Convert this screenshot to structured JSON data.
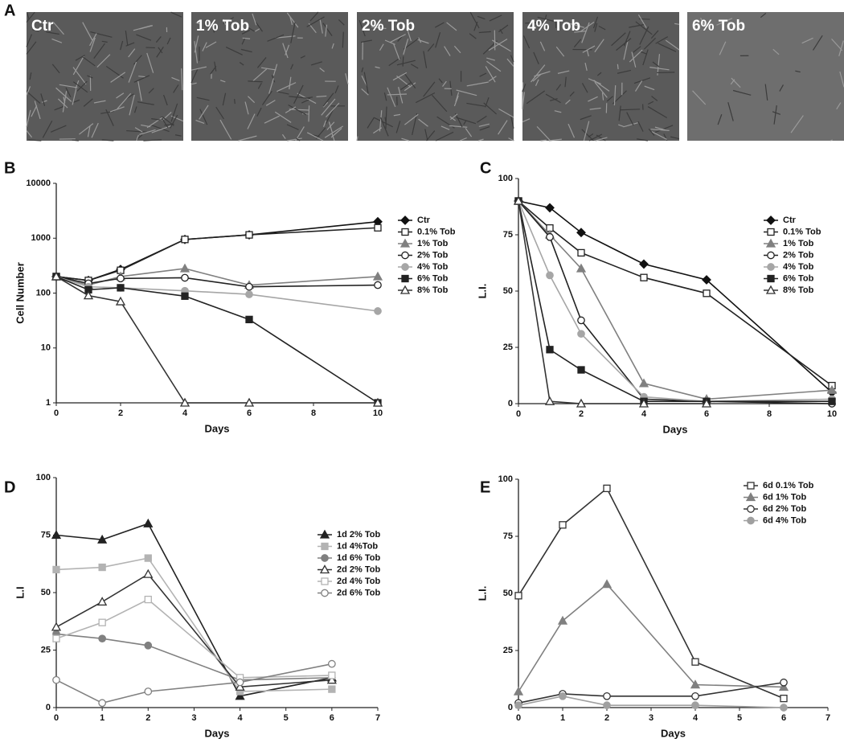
{
  "panel_a": {
    "label": "A",
    "images": [
      "Ctr",
      "1% Tob",
      "2% Tob",
      "4% Tob",
      "6% Tob"
    ]
  },
  "chart_data": [
    {
      "type": "line",
      "panel": "B",
      "y_label": "Cell Number",
      "x_label": "Days",
      "yscale": "log",
      "x": [
        0,
        1,
        2,
        4,
        6,
        10
      ],
      "xlim": [
        0,
        10
      ],
      "xticks": [
        0,
        2,
        4,
        6,
        8,
        10
      ],
      "ylim": [
        1,
        10000
      ],
      "yticks": [
        1,
        10,
        100,
        1000,
        10000
      ],
      "series": [
        {
          "name": "Ctr",
          "color": "#111111",
          "marker": "diamond",
          "filled": true,
          "values": [
            200,
            170,
            270,
            950,
            1150,
            2000
          ]
        },
        {
          "name": "0.1% Tob",
          "color": "#222222",
          "marker": "square",
          "filled": false,
          "values": [
            200,
            170,
            260,
            950,
            1150,
            1550
          ]
        },
        {
          "name": "1% Tob",
          "color": "#808080",
          "marker": "triangle",
          "filled": true,
          "values": [
            200,
            140,
            200,
            280,
            140,
            200
          ]
        },
        {
          "name": "2% Tob",
          "color": "#222222",
          "marker": "circle",
          "filled": false,
          "values": [
            200,
            150,
            185,
            190,
            130,
            140
          ]
        },
        {
          "name": "4% Tob",
          "color": "#a6a6a6",
          "marker": "circle",
          "filled": true,
          "values": [
            200,
            130,
            125,
            110,
            95,
            47
          ]
        },
        {
          "name": "6% Tob",
          "color": "#222222",
          "marker": "square",
          "filled": true,
          "values": [
            200,
            115,
            125,
            88,
            33,
            1
          ]
        },
        {
          "name": "8% Tob",
          "color": "#333333",
          "marker": "triangle",
          "filled": false,
          "values": [
            200,
            90,
            70,
            1,
            1,
            1
          ]
        }
      ]
    },
    {
      "type": "line",
      "panel": "C",
      "y_label": "L.I.",
      "x_label": "Days",
      "x": [
        0,
        1,
        2,
        4,
        6,
        10
      ],
      "xlim": [
        0,
        10
      ],
      "xticks": [
        0,
        2,
        4,
        6,
        8,
        10
      ],
      "ylim": [
        0,
        100
      ],
      "yticks": [
        0,
        25,
        50,
        75,
        100
      ],
      "series": [
        {
          "name": "Ctr",
          "color": "#111111",
          "marker": "diamond",
          "filled": true,
          "values": [
            90,
            87,
            76,
            62,
            55,
            5
          ]
        },
        {
          "name": "0.1% Tob",
          "color": "#222222",
          "marker": "square",
          "filled": false,
          "values": [
            90,
            78,
            67,
            56,
            49,
            8
          ]
        },
        {
          "name": "1% Tob",
          "color": "#808080",
          "marker": "triangle",
          "filled": true,
          "values": [
            90,
            75,
            60,
            9,
            2,
            6
          ]
        },
        {
          "name": "2% Tob",
          "color": "#222222",
          "marker": "circle",
          "filled": false,
          "values": [
            90,
            74,
            37,
            2,
            1,
            0
          ]
        },
        {
          "name": "4% Tob",
          "color": "#a6a6a6",
          "marker": "circle",
          "filled": true,
          "values": [
            90,
            57,
            31,
            3,
            1,
            2
          ]
        },
        {
          "name": "6% Tob",
          "color": "#222222",
          "marker": "square",
          "filled": true,
          "values": [
            90,
            24,
            15,
            1,
            1,
            1
          ]
        },
        {
          "name": "8% Tob",
          "color": "#333333",
          "marker": "triangle",
          "filled": false,
          "values": [
            90,
            1,
            0,
            0,
            0,
            null
          ]
        }
      ]
    },
    {
      "type": "line",
      "panel": "D",
      "y_label": "L.I",
      "x_label": "Days",
      "x": [
        0,
        1,
        2,
        4,
        6
      ],
      "xlim": [
        0,
        7
      ],
      "xticks": [
        0,
        1,
        2,
        3,
        4,
        5,
        6,
        7
      ],
      "ylim": [
        0,
        100
      ],
      "yticks": [
        0,
        25,
        50,
        75,
        100
      ],
      "series": [
        {
          "name": "1d 2% Tob",
          "color": "#222222",
          "marker": "triangle",
          "filled": true,
          "values": [
            75,
            73,
            80,
            5,
            13
          ]
        },
        {
          "name": "1d 4%Tob",
          "color": "#b3b3b3",
          "marker": "square",
          "filled": true,
          "values": [
            60,
            61,
            65,
            7,
            8
          ]
        },
        {
          "name": "1d 6% Tob",
          "color": "#808080",
          "marker": "circle",
          "filled": true,
          "values": [
            32,
            30,
            27,
            12,
            13
          ]
        },
        {
          "name": "2d 2% Tob",
          "color": "#333333",
          "marker": "triangle",
          "filled": false,
          "values": [
            35,
            46,
            58,
            9,
            12
          ]
        },
        {
          "name": "2d 4% Tob",
          "color": "#b3b3b3",
          "marker": "square",
          "filled": false,
          "values": [
            30,
            37,
            47,
            13,
            14
          ]
        },
        {
          "name": "2d 6% Tob",
          "color": "#808080",
          "marker": "circle",
          "filled": false,
          "values": [
            12,
            2,
            7,
            11,
            19
          ]
        }
      ]
    },
    {
      "type": "line",
      "panel": "E",
      "y_label": "L.I.",
      "x_label": "Days",
      "x": [
        0,
        1,
        2,
        4,
        6
      ],
      "xlim": [
        0,
        7
      ],
      "xticks": [
        0,
        1,
        2,
        3,
        4,
        5,
        6,
        7
      ],
      "ylim": [
        0,
        100
      ],
      "yticks": [
        0,
        25,
        50,
        75,
        100
      ],
      "series": [
        {
          "name": "6d 0.1% Tob",
          "color": "#333333",
          "marker": "square",
          "filled": false,
          "values": [
            49,
            80,
            96,
            20,
            4
          ]
        },
        {
          "name": "6d 1% Tob",
          "color": "#808080",
          "marker": "triangle",
          "filled": true,
          "values": [
            7,
            38,
            54,
            10,
            9
          ]
        },
        {
          "name": "6d 2% Tob",
          "color": "#333333",
          "marker": "circle",
          "filled": false,
          "values": [
            2,
            6,
            5,
            5,
            11
          ]
        },
        {
          "name": "6d 4% Tob",
          "color": "#a0a0a0",
          "marker": "circle",
          "filled": true,
          "values": [
            1,
            5,
            1,
            1,
            0
          ]
        }
      ]
    }
  ]
}
